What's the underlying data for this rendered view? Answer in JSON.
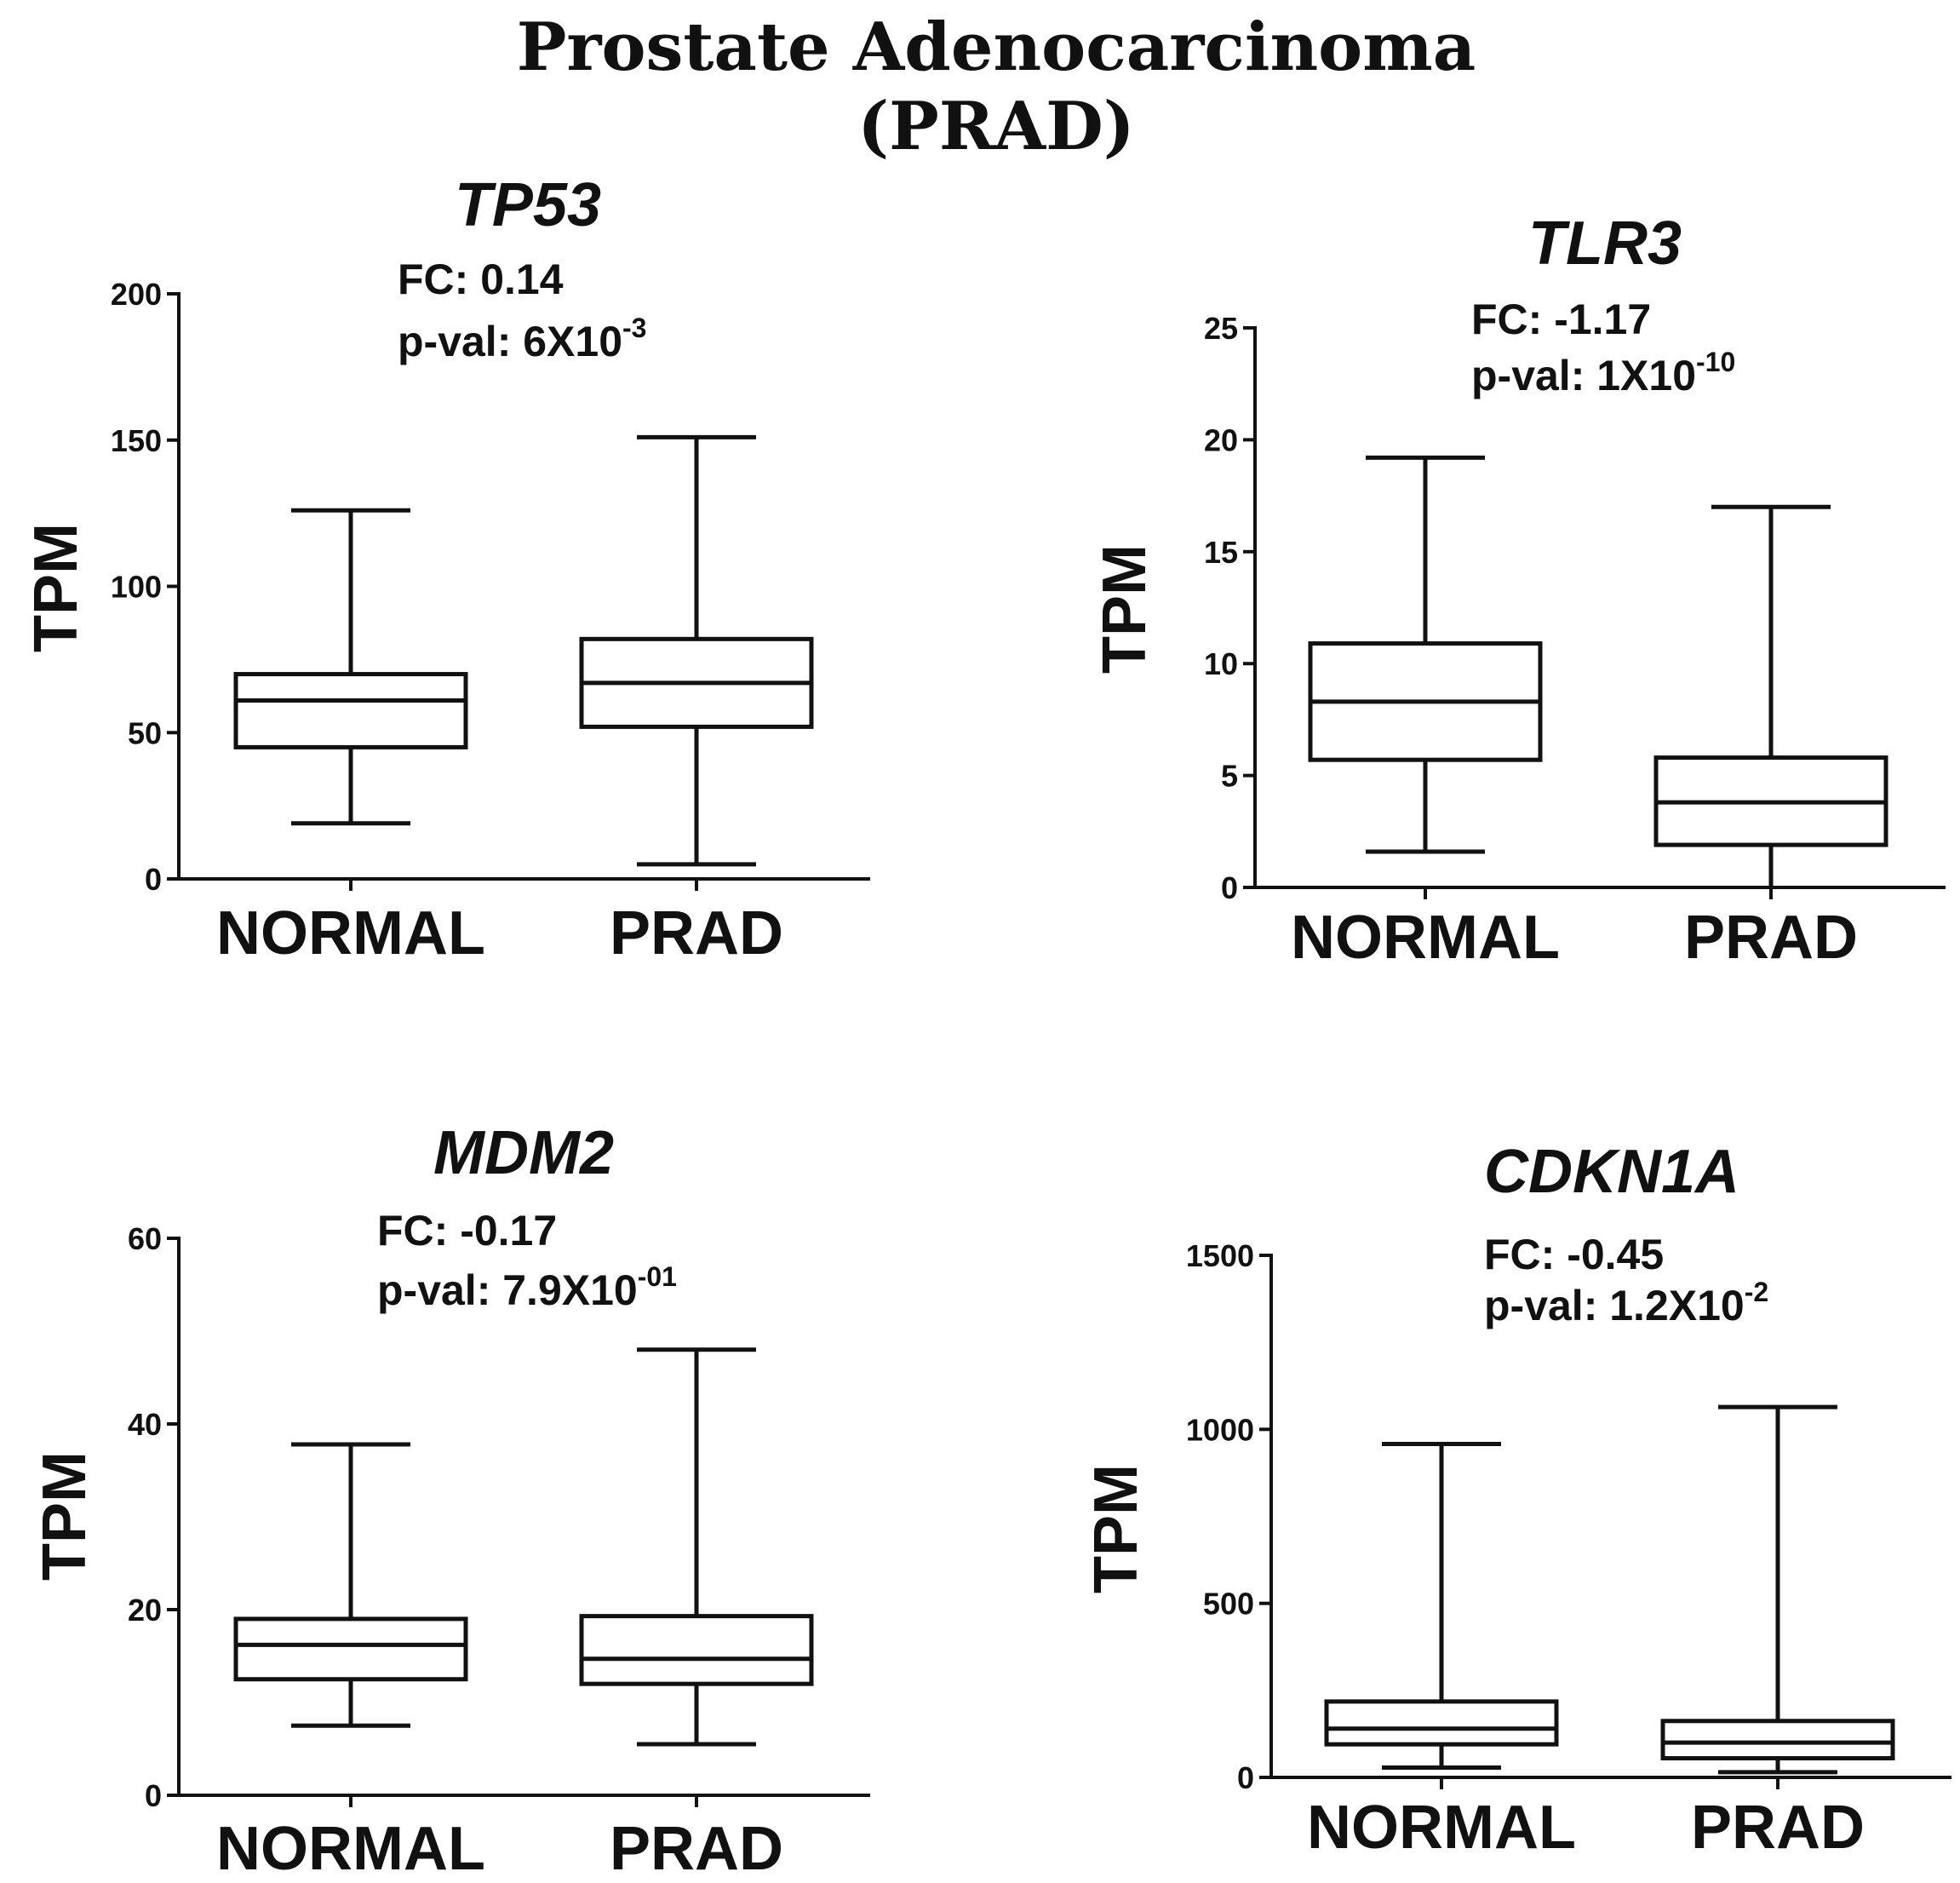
{
  "figure": {
    "title_line1": "Prostate Adenocarcinoma",
    "title_line2": "(PRAD)"
  },
  "chart_data": [
    {
      "type": "box",
      "title": "TP53",
      "fc_label": "FC: 0.14",
      "pval_prefix": "p-val: 6X10",
      "pval_exponent": "-3",
      "xlabel": "",
      "ylabel": "TPM",
      "ylim": [
        0,
        200
      ],
      "yticks": [
        0,
        50,
        100,
        150,
        200
      ],
      "categories": [
        "NORMAL",
        "PRAD"
      ],
      "boxes": [
        {
          "name": "NORMAL",
          "min": 19,
          "q1": 45,
          "median": 61,
          "q3": 70,
          "max": 126
        },
        {
          "name": "PRAD",
          "min": 5,
          "q1": 52,
          "median": 67,
          "q3": 82,
          "max": 151
        }
      ]
    },
    {
      "type": "box",
      "title": "TLR3",
      "fc_label": "FC:  -1.17",
      "pval_prefix": "p-val:  1X10",
      "pval_exponent": "-10",
      "xlabel": "",
      "ylabel": "TPM",
      "ylim": [
        0,
        25
      ],
      "yticks": [
        0,
        5,
        10,
        15,
        20,
        25
      ],
      "categories": [
        "NORMAL",
        "PRAD"
      ],
      "boxes": [
        {
          "name": "NORMAL",
          "min": 1.6,
          "q1": 5.7,
          "median": 8.3,
          "q3": 10.9,
          "max": 19.2
        },
        {
          "name": "PRAD",
          "min": 0,
          "q1": 1.9,
          "median": 3.8,
          "q3": 5.8,
          "max": 17.0
        }
      ]
    },
    {
      "type": "box",
      "title": "MDM2",
      "fc_label": "FC:  -0.17",
      "pval_prefix": "p-val:  7.9X10",
      "pval_exponent": "-01",
      "xlabel": "",
      "ylabel": "TPM",
      "ylim": [
        0,
        60
      ],
      "yticks": [
        0,
        20,
        40,
        60
      ],
      "categories": [
        "NORMAL",
        "PRAD"
      ],
      "boxes": [
        {
          "name": "NORMAL",
          "min": 7.5,
          "q1": 12.5,
          "median": 16.2,
          "q3": 19.0,
          "max": 37.8
        },
        {
          "name": "PRAD",
          "min": 5.5,
          "q1": 12.0,
          "median": 14.7,
          "q3": 19.3,
          "max": 48.0
        }
      ]
    },
    {
      "type": "box",
      "title": "CDKN1A",
      "fc_label": "FC:  -0.45",
      "pval_prefix": "p-val:  1.2X10",
      "pval_exponent": "-2",
      "xlabel": "",
      "ylabel": "TPM",
      "ylim": [
        0,
        1500
      ],
      "yticks": [
        0,
        500,
        1000,
        1500
      ],
      "categories": [
        "NORMAL",
        "PRAD"
      ],
      "boxes": [
        {
          "name": "NORMAL",
          "min": 28,
          "q1": 95,
          "median": 140,
          "q3": 218,
          "max": 958
        },
        {
          "name": "PRAD",
          "min": 15,
          "q1": 55,
          "median": 100,
          "q3": 162,
          "max": 1064
        }
      ]
    }
  ]
}
